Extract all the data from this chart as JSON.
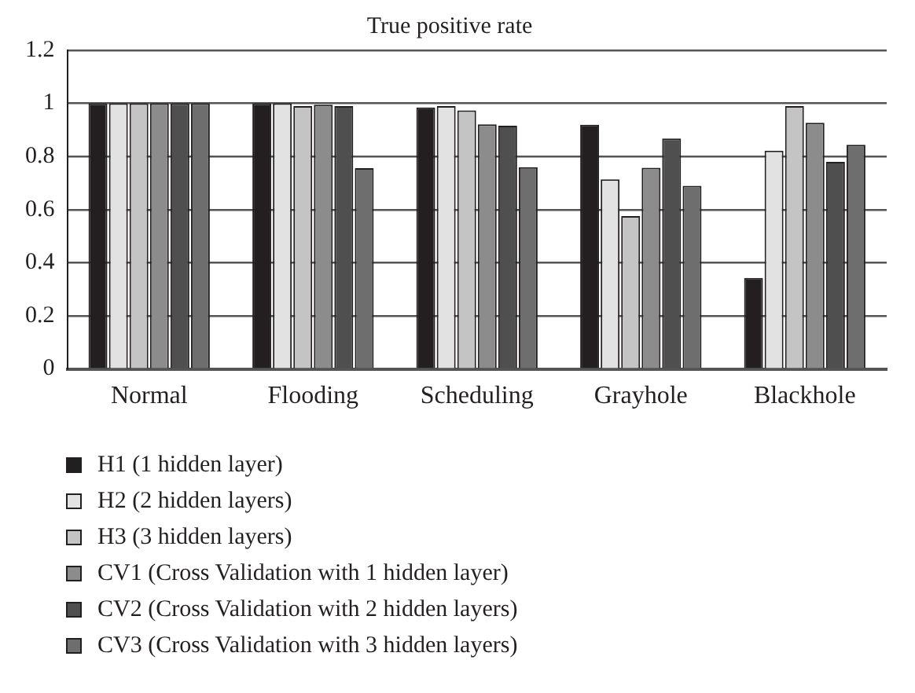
{
  "chart_data": {
    "type": "bar",
    "title": "True positive rate",
    "categories": [
      "Normal",
      "Flooding",
      "Scheduling",
      "Grayhole",
      "Blackhole"
    ],
    "series": [
      {
        "name": "H1 (1 hidden layer)",
        "color": "#231f20",
        "values": [
          1,
          1,
          0.985,
          0.92,
          0.343
        ]
      },
      {
        "name": "H2 (2 hidden layers)",
        "color": "#e2e2e2",
        "values": [
          1,
          1,
          0.99,
          0.714,
          0.822
        ]
      },
      {
        "name": "H3 (3 hidden layers)",
        "color": "#c4c4c4",
        "values": [
          1,
          0.99,
          0.974,
          0.576,
          0.99
        ]
      },
      {
        "name": "CV1 (Cross Validation with 1 hidden layer)",
        "color": "#8c8c8c",
        "values": [
          1,
          0.995,
          0.921,
          0.758,
          0.927
        ]
      },
      {
        "name": "CV2 (Cross Validation with 2 hidden layers)",
        "color": "#4f4f4f",
        "values": [
          1,
          0.99,
          0.916,
          0.868,
          0.78
        ]
      },
      {
        "name": "CV3 (Cross Validation with 3 hidden layers)",
        "color": "#6e6e6e",
        "values": [
          1,
          0.756,
          0.76,
          0.69,
          0.844
        ]
      }
    ],
    "ylim": [
      0,
      1.2
    ],
    "yticks": [
      0,
      0.2,
      0.4,
      0.6,
      0.8,
      1,
      1.2
    ],
    "grid": "y",
    "legend": "bottom"
  }
}
